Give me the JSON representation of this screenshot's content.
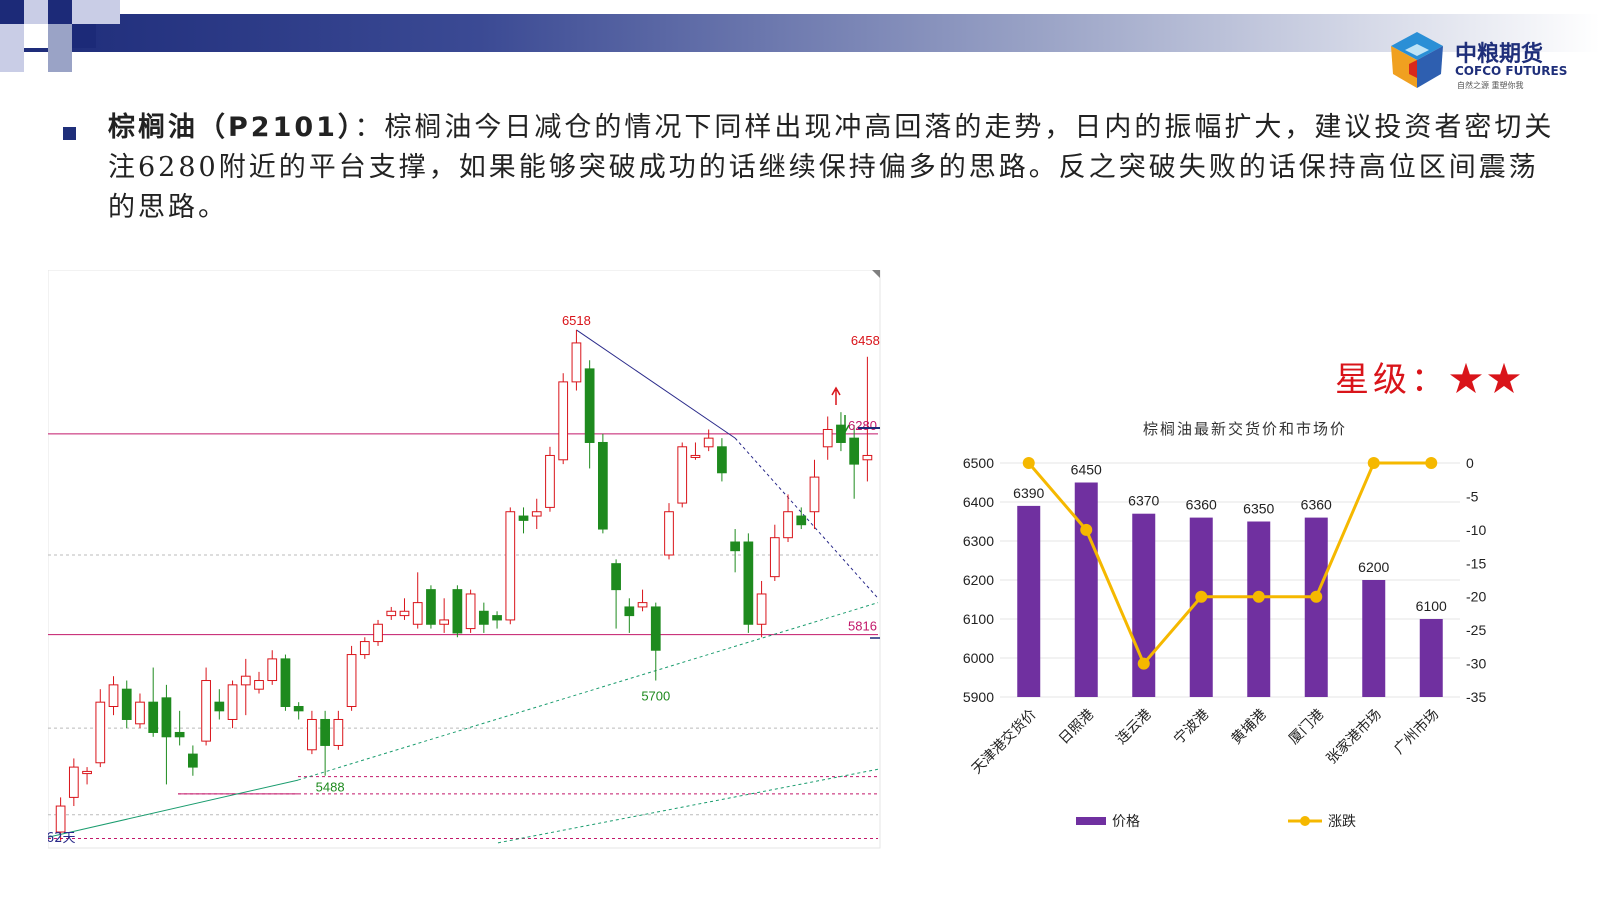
{
  "header": {
    "logo_cn": "中粮期货",
    "logo_en": "COFCO FUTURES",
    "logo_sub": "自然之源 重塑你我"
  },
  "commentary": {
    "title": "棕榈油（P2101）",
    "separator": "：",
    "body": "棕榈油今日减仓的情况下同样出现冲高回落的走势，日内的振幅扩大，建议投资者密切关注6280附近的平台支撑，如果能够突破成功的话继续保持偏多的思路。反之突破失败的话保持高位区间震荡的思路。"
  },
  "rating": {
    "label": "星级：",
    "stars": "★★"
  },
  "chart_data": [
    {
      "type": "candlestick",
      "period_label": "62天",
      "price_labels": {
        "high_main": "6518",
        "high_recent": "6458",
        "support_low_1": "5488",
        "support_low_2": "5700",
        "level_upper": "6280",
        "level_lower": "5816"
      },
      "levels": {
        "upper": 6280,
        "lower": 5816
      },
      "ylim": [
        5330,
        6640
      ],
      "candles": [
        {
          "o": 5360,
          "c": 5420,
          "h": 5440,
          "l": 5340
        },
        {
          "o": 5440,
          "c": 5510,
          "h": 5530,
          "l": 5420
        },
        {
          "o": 5495,
          "c": 5500,
          "h": 5510,
          "l": 5470
        },
        {
          "o": 5520,
          "c": 5660,
          "h": 5690,
          "l": 5510
        },
        {
          "o": 5650,
          "c": 5700,
          "h": 5720,
          "l": 5630
        },
        {
          "o": 5690,
          "c": 5620,
          "h": 5710,
          "l": 5600
        },
        {
          "o": 5610,
          "c": 5660,
          "h": 5680,
          "l": 5600
        },
        {
          "o": 5660,
          "c": 5590,
          "h": 5740,
          "l": 5580
        },
        {
          "o": 5670,
          "c": 5580,
          "h": 5700,
          "l": 5470
        },
        {
          "o": 5590,
          "c": 5580,
          "h": 5640,
          "l": 5560
        },
        {
          "o": 5540,
          "c": 5510,
          "h": 5560,
          "l": 5490
        },
        {
          "o": 5570,
          "c": 5710,
          "h": 5740,
          "l": 5560
        },
        {
          "o": 5660,
          "c": 5640,
          "h": 5690,
          "l": 5620
        },
        {
          "o": 5620,
          "c": 5700,
          "h": 5710,
          "l": 5600
        },
        {
          "o": 5700,
          "c": 5720,
          "h": 5760,
          "l": 5630
        },
        {
          "o": 5690,
          "c": 5710,
          "h": 5730,
          "l": 5680
        },
        {
          "o": 5710,
          "c": 5760,
          "h": 5780,
          "l": 5700
        },
        {
          "o": 5760,
          "c": 5650,
          "h": 5770,
          "l": 5640
        },
        {
          "o": 5650,
          "c": 5640,
          "h": 5660,
          "l": 5620
        },
        {
          "o": 5550,
          "c": 5620,
          "h": 5640,
          "l": 5540
        },
        {
          "o": 5620,
          "c": 5560,
          "h": 5640,
          "l": 5490
        },
        {
          "o": 5560,
          "c": 5620,
          "h": 5640,
          "l": 5550
        },
        {
          "o": 5650,
          "c": 5770,
          "h": 5790,
          "l": 5640
        },
        {
          "o": 5770,
          "c": 5800,
          "h": 5810,
          "l": 5760
        },
        {
          "o": 5800,
          "c": 5840,
          "h": 5850,
          "l": 5790
        },
        {
          "o": 5860,
          "c": 5870,
          "h": 5880,
          "l": 5850
        },
        {
          "o": 5860,
          "c": 5870,
          "h": 5900,
          "l": 5850
        },
        {
          "o": 5840,
          "c": 5890,
          "h": 5960,
          "l": 5830
        },
        {
          "o": 5920,
          "c": 5840,
          "h": 5930,
          "l": 5830
        },
        {
          "o": 5840,
          "c": 5850,
          "h": 5900,
          "l": 5820
        },
        {
          "o": 5920,
          "c": 5820,
          "h": 5930,
          "l": 5810
        },
        {
          "o": 5830,
          "c": 5910,
          "h": 5920,
          "l": 5820
        },
        {
          "o": 5870,
          "c": 5840,
          "h": 5890,
          "l": 5820
        },
        {
          "o": 5860,
          "c": 5850,
          "h": 5870,
          "l": 5830
        },
        {
          "o": 5850,
          "c": 6100,
          "h": 6110,
          "l": 5840
        },
        {
          "o": 6090,
          "c": 6080,
          "h": 6110,
          "l": 6050
        },
        {
          "o": 6090,
          "c": 6100,
          "h": 6130,
          "l": 6060
        },
        {
          "o": 6110,
          "c": 6230,
          "h": 6250,
          "l": 6100
        },
        {
          "o": 6220,
          "c": 6400,
          "h": 6420,
          "l": 6210
        },
        {
          "o": 6400,
          "c": 6490,
          "h": 6520,
          "l": 6380
        },
        {
          "o": 6430,
          "c": 6260,
          "h": 6450,
          "l": 6200
        },
        {
          "o": 6260,
          "c": 6060,
          "h": 6280,
          "l": 6050
        },
        {
          "o": 5980,
          "c": 5920,
          "h": 5990,
          "l": 5830
        },
        {
          "o": 5880,
          "c": 5860,
          "h": 5900,
          "l": 5820
        },
        {
          "o": 5880,
          "c": 5890,
          "h": 5920,
          "l": 5870
        },
        {
          "o": 5880,
          "c": 5780,
          "h": 5890,
          "l": 5710
        },
        {
          "o": 6000,
          "c": 6100,
          "h": 6120,
          "l": 5990
        },
        {
          "o": 6120,
          "c": 6250,
          "h": 6260,
          "l": 6110
        },
        {
          "o": 6230,
          "c": 6230,
          "h": 6260,
          "l": 6220
        },
        {
          "o": 6250,
          "c": 6270,
          "h": 6290,
          "l": 6240
        },
        {
          "o": 6250,
          "c": 6190,
          "h": 6270,
          "l": 6170
        },
        {
          "o": 6030,
          "c": 6010,
          "h": 6060,
          "l": 5960
        },
        {
          "o": 6030,
          "c": 5840,
          "h": 6050,
          "l": 5820
        },
        {
          "o": 5840,
          "c": 5910,
          "h": 5940,
          "l": 5810
        },
        {
          "o": 5950,
          "c": 6040,
          "h": 6070,
          "l": 5940
        },
        {
          "o": 6040,
          "c": 6100,
          "h": 6140,
          "l": 6030
        },
        {
          "o": 6090,
          "c": 6070,
          "h": 6110,
          "l": 6060
        },
        {
          "o": 6100,
          "c": 6180,
          "h": 6220,
          "l": 6060
        },
        {
          "o": 6250,
          "c": 6290,
          "h": 6320,
          "l": 6220
        },
        {
          "o": 6300,
          "c": 6260,
          "h": 6330,
          "l": 6240
        },
        {
          "o": 6270,
          "c": 6210,
          "h": 6300,
          "l": 6130
        },
        {
          "o": 6220,
          "c": 6230,
          "h": 6458,
          "l": 6170
        }
      ]
    },
    {
      "type": "bar+line",
      "title": "棕榈油最新交货价和市场价",
      "categories": [
        "天津港交货价",
        "日照港",
        "连云港",
        "宁波港",
        "黄埔港",
        "厦门港",
        "张家港市场",
        "广州市场"
      ],
      "series": [
        {
          "name": "价格",
          "type": "bar",
          "axis": "left",
          "color": "#7030a0",
          "values": [
            6390,
            6450,
            6370,
            6360,
            6350,
            6360,
            6200,
            6100
          ]
        },
        {
          "name": "涨跌",
          "type": "line",
          "axis": "right",
          "color": "#f5b800",
          "values": [
            0,
            -10,
            -30,
            -20,
            -20,
            -20,
            0,
            0
          ]
        }
      ],
      "y_left": {
        "ylim": [
          5900,
          6500
        ],
        "ticks": [
          "5900",
          "6000",
          "6100",
          "6200",
          "6300",
          "6400",
          "6500"
        ]
      },
      "y_right": {
        "ylim": [
          -35,
          0
        ],
        "ticks": [
          "0",
          "-5",
          "-10",
          "-15",
          "-20",
          "-25",
          "-30",
          "-35"
        ]
      },
      "legend_position": "bottom"
    }
  ]
}
